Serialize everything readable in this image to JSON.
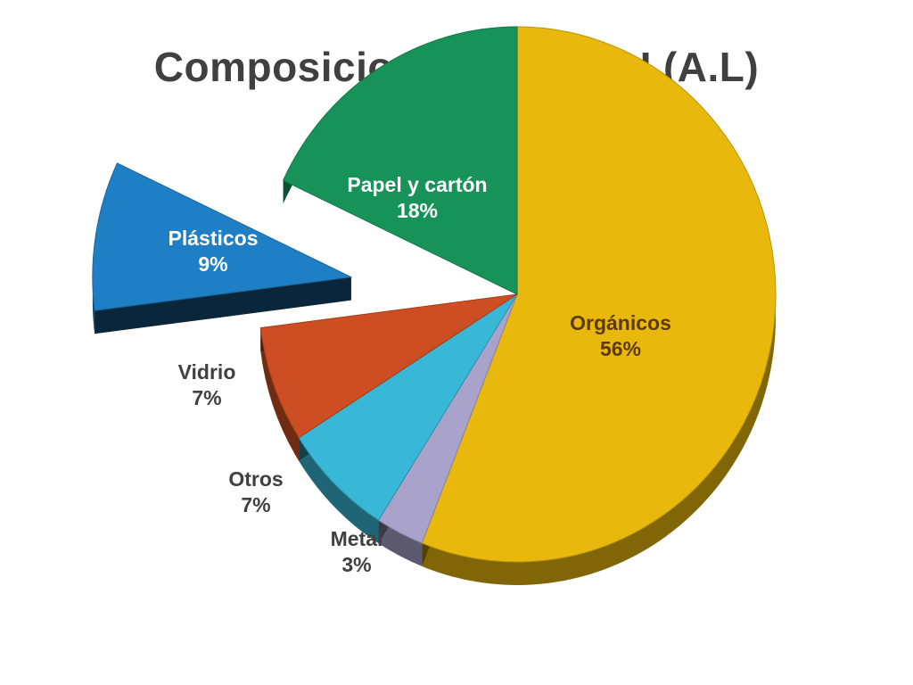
{
  "chart_data": {
    "type": "pie",
    "title": "Composicion de los RSU (A.L)",
    "slices": [
      {
        "label": "Orgánicos",
        "value": 56,
        "value_label": "56%",
        "color": "#E8B90C",
        "exploded": false
      },
      {
        "label": "Metal",
        "value": 3,
        "value_label": "3%",
        "color": "#A9A3CC",
        "exploded": false
      },
      {
        "label": "Otros",
        "value": 7,
        "value_label": "7%",
        "color": "#38B7D6",
        "exploded": false
      },
      {
        "label": "Vidrio",
        "value": 7,
        "value_label": "7%",
        "color": "#CC4E22",
        "exploded": false
      },
      {
        "label": "Plásticos",
        "value": 9,
        "value_label": "9%",
        "color": "#1F7FC4",
        "exploded": true
      },
      {
        "label": "Papel y cartón",
        "value": 18,
        "value_label": "18%",
        "color": "#17935A",
        "exploded": false
      }
    ]
  }
}
